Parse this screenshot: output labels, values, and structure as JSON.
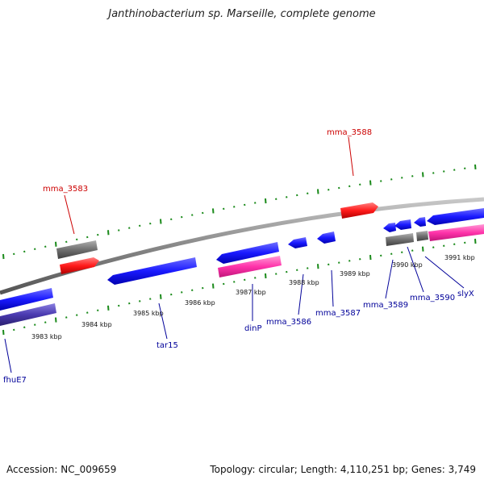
{
  "title": "Janthinobacterium sp. Marseille, complete genome",
  "accession_label": "Accession: NC_009659",
  "topology_label": "Topology: circular; Length: 4,110,251 bp; Genes: 3,749",
  "colors": {
    "backbone": "#888888",
    "tick": "#1a8a1a",
    "gene_blue": "#1a1aff",
    "gene_red": "#ff1a1a",
    "gene_pink": "#ff33aa",
    "gene_gray": "#707070",
    "gene_darkblue": "#4a3ab0",
    "label_red": "#cc0000",
    "label_blue": "#000099"
  },
  "scale_labels": [
    "3983 kbp",
    "3984 kbp",
    "3985 kbp",
    "3986 kbp",
    "3987 kbp",
    "3988 kbp",
    "3989 kbp",
    "3990 kbp",
    "3991 kbp"
  ],
  "gene_labels": [
    {
      "text": "mma_3583",
      "color": "red"
    },
    {
      "text": "mma_3588",
      "color": "red"
    },
    {
      "text": "fhuE7",
      "color": "blue"
    },
    {
      "text": "tar15",
      "color": "blue"
    },
    {
      "text": "dinP",
      "color": "blue"
    },
    {
      "text": "mma_3586",
      "color": "blue"
    },
    {
      "text": "mma_3587",
      "color": "blue"
    },
    {
      "text": "mma_3589",
      "color": "blue"
    },
    {
      "text": "mma_3590",
      "color": "blue"
    },
    {
      "text": "slyX",
      "color": "blue"
    }
  ]
}
